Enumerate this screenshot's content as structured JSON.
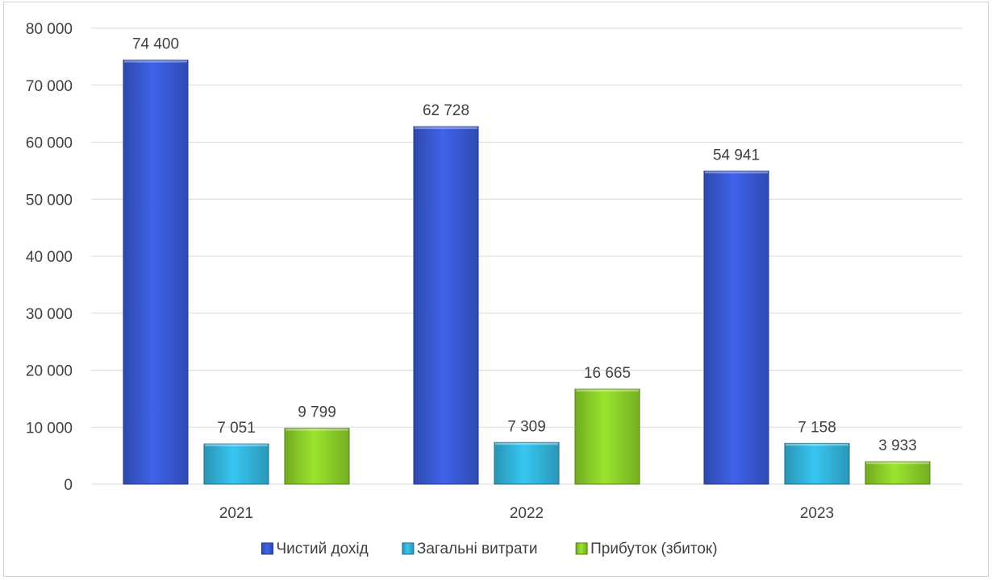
{
  "chart_data": {
    "type": "bar",
    "title": "",
    "xlabel": "",
    "ylabel": "",
    "categories": [
      "2021",
      "2022",
      "2023"
    ],
    "series": [
      {
        "name": "Чистий дохід",
        "values": [
          74400,
          62728,
          54941
        ],
        "color": "#3a5bd9"
      },
      {
        "name": "Загальні витрати",
        "values": [
          7051,
          7309,
          7158
        ],
        "color": "#33b8e0"
      },
      {
        "name": "Прибуток (збиток)",
        "values": [
          9799,
          16665,
          3933
        ],
        "color": "#8fd42a"
      }
    ],
    "data_labels": [
      [
        "74 400",
        "62 728",
        "54 941"
      ],
      [
        "7 051",
        "7 309",
        "7 158"
      ],
      [
        "9 799",
        "16 665",
        "3 933"
      ]
    ],
    "ylim": [
      0,
      80000
    ],
    "yticks": [
      0,
      10000,
      20000,
      30000,
      40000,
      50000,
      60000,
      70000,
      80000
    ],
    "ytick_labels": [
      "0",
      "10 000",
      "20 000",
      "30 000",
      "40 000",
      "50 000",
      "60 000",
      "70 000",
      "80 000"
    ],
    "grid": true,
    "legend_position": "bottom"
  }
}
